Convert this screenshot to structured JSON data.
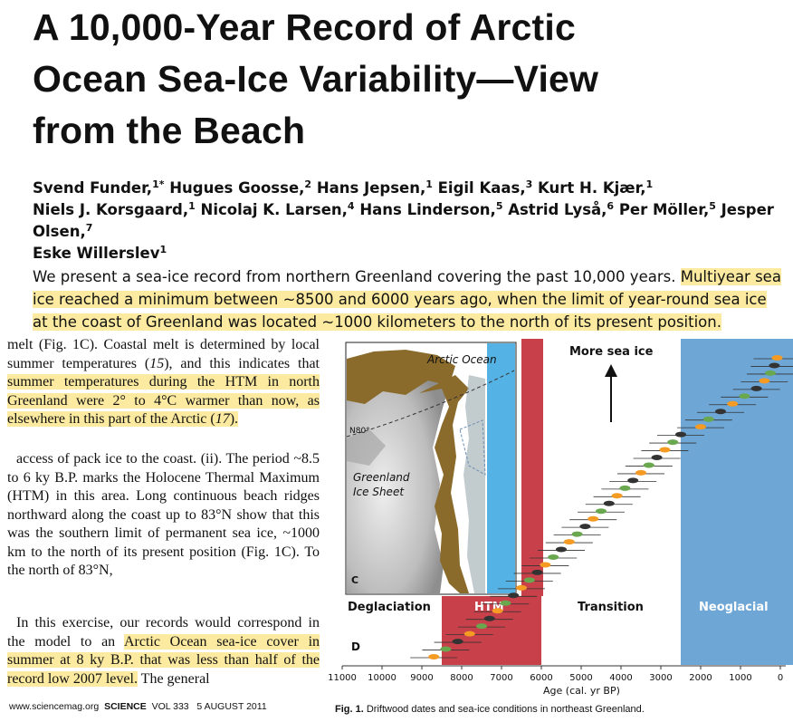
{
  "title": {
    "line1": "A 10,000-Year Record of Arctic",
    "line2": "Ocean Sea-Ice Variability—View",
    "line3": "from the Beach"
  },
  "authors": [
    {
      "name": "Svend Funder,",
      "sup": "1*"
    },
    {
      "name": "Hugues Goosse,",
      "sup": "2"
    },
    {
      "name": "Hans Jepsen,",
      "sup": "1"
    },
    {
      "name": "Eigil Kaas,",
      "sup": "3"
    },
    {
      "name": "Kurt H. Kjær,",
      "sup": "1"
    },
    {
      "name": "Niels J. Korsgaard,",
      "sup": "1"
    },
    {
      "name": "Nicolaj K. Larsen,",
      "sup": "4"
    },
    {
      "name": "Hans Linderson,",
      "sup": "5"
    },
    {
      "name": "Astrid Lyså,",
      "sup": "6"
    },
    {
      "name": "Per Möller,",
      "sup": "5"
    },
    {
      "name": "Jesper Olsen,",
      "sup": "7"
    },
    {
      "name": "Eske Willerslev",
      "sup": "1"
    }
  ],
  "abstract": {
    "plain": "We present a sea-ice record from northern Greenland covering the past 10,000 years.",
    "highlight": "Multiyear sea ice reached a minimum between ~8500 and 6000 years ago, when the limit of year-round sea ice at the coast of Greenland was located ~1000 kilometers to the north of its present position."
  },
  "body": {
    "p1_pre": "melt (Fig. 1C). Coastal melt is determined by local summer temperatures (",
    "p1_ref1": "15",
    "p1_mid": "), and this indicates that ",
    "p1_hl1": "summer temperatures during the HTM in north Greenland were 2° to 4°C warmer than now, as elsewhere in this part of the Arctic (",
    "p1_ref2": "17",
    "p1_hl2": ").",
    "p2": "access of pack ice to the coast. (ii). The period ~8.5 to 6 ky B.P. marks the Holocene Thermal Maximum (HTM) in this area. Long continuous beach ridges northward along the coast up to 83°N show that this was the southern limit of permanent sea ice, ~1000 km to the north of its present position (Fig. 1C). To the north of 83°N,",
    "p3_pre": "In this exercise, our records would correspond in the model to an ",
    "p3_hl": "Arctic Ocean sea-ice cover in summer at 8 ky B.P. that was less than half of the record low 2007 level.",
    "p3_post": " The general"
  },
  "footer": {
    "site": "www.sciencemag.org",
    "journal": "SCIENCE",
    "volume": "VOL 333",
    "date": "5 AUGUST 2011"
  },
  "figure": {
    "map": {
      "ocean_label": "Arctic Ocean",
      "lat_label": "N80°",
      "ice_label_1": "Greenland",
      "ice_label_2": "Ice Sheet",
      "panel": "C"
    },
    "more_ice_label": "More sea ice",
    "periods": [
      {
        "label": "Deglaciation"
      },
      {
        "label": "HTM",
        "start": 8500,
        "end": 6000,
        "color": "#c8414a"
      },
      {
        "label": "Transition"
      },
      {
        "label": "Neoglacial",
        "start": 2500,
        "end": 0,
        "color": "#6ea6d6"
      }
    ],
    "panel_d": "D",
    "x_ticks": [
      11000,
      10000,
      9000,
      8000,
      7000,
      6000,
      5000,
      4000,
      3000,
      2000,
      1000,
      0
    ],
    "x_label": "Age (cal. yr BP)",
    "caption_bold": "Fig. 1.",
    "caption_text": "Driftwood dates and sea-ice conditions in northeast Greenland."
  },
  "chart_data": {
    "type": "scatter",
    "xlabel": "Age (cal. yr BP)",
    "xlim": [
      11000,
      0
    ],
    "points_age": [
      8700,
      8400,
      8100,
      7800,
      7500,
      7300,
      7100,
      6900,
      6700,
      6500,
      6300,
      6100,
      5900,
      5700,
      5500,
      5300,
      5100,
      4900,
      4700,
      4500,
      4300,
      4100,
      3900,
      3700,
      3500,
      3300,
      3100,
      2900,
      2700,
      2500,
      2000,
      1800,
      1500,
      1200,
      900,
      600,
      400,
      250,
      150,
      80
    ]
  }
}
